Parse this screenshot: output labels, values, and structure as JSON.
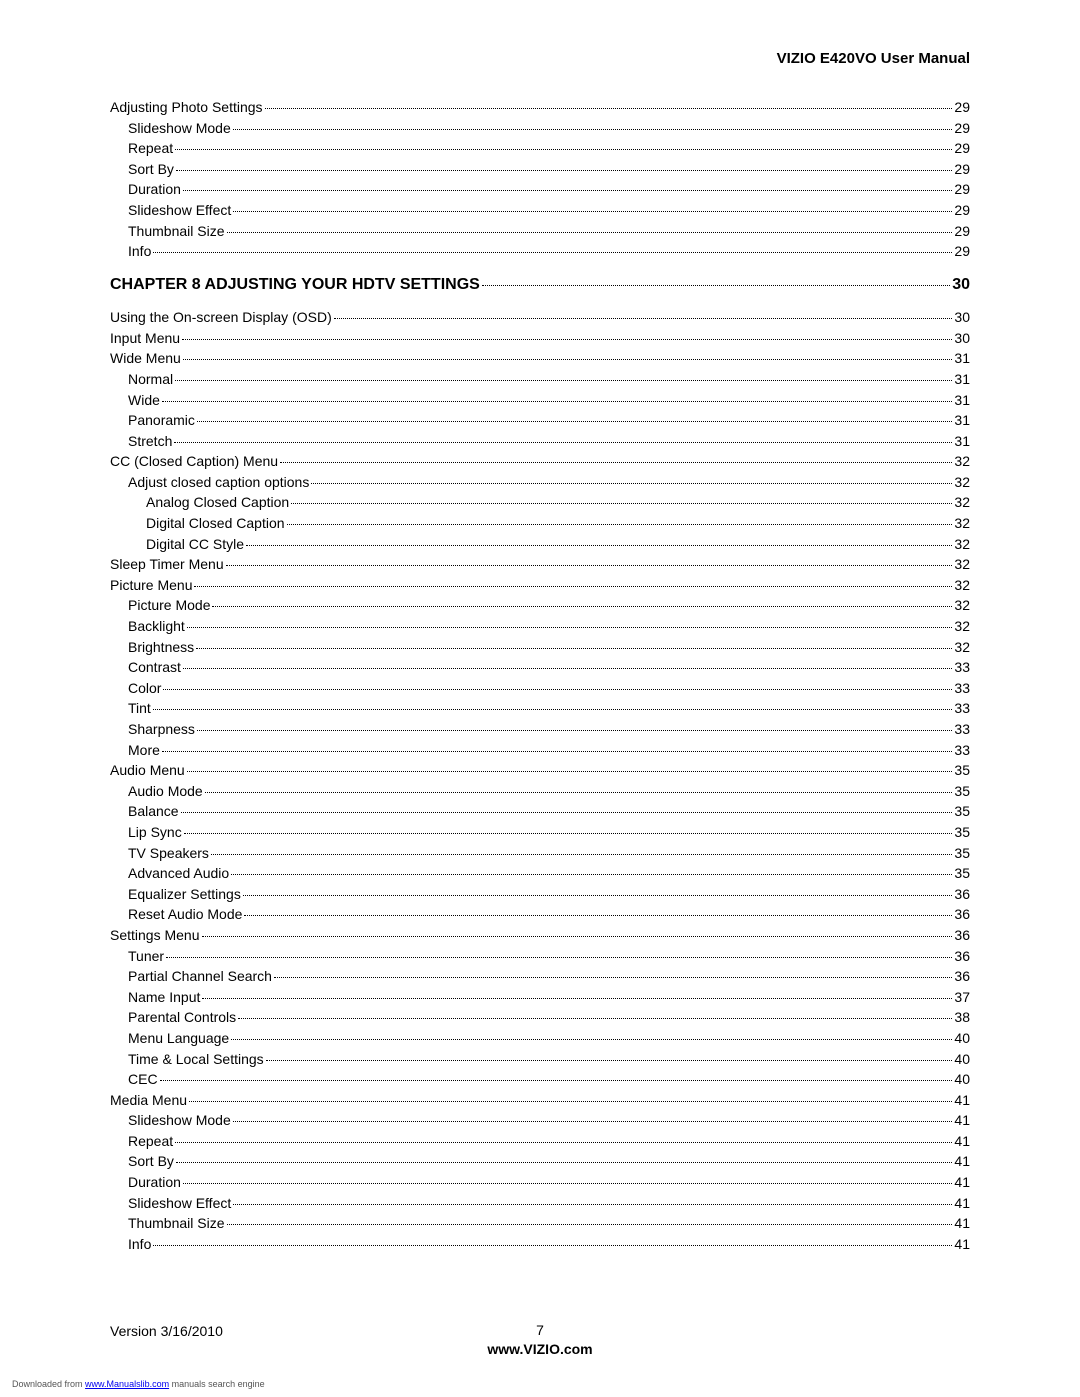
{
  "header": {
    "title": "VIZIO E420VO User Manual"
  },
  "toc": [
    {
      "indent": 0,
      "label": "Adjusting Photo Settings",
      "page": "29",
      "chapter": false
    },
    {
      "indent": 1,
      "label": "Slideshow Mode",
      "page": "29",
      "chapter": false
    },
    {
      "indent": 1,
      "label": "Repeat",
      "page": "29",
      "chapter": false
    },
    {
      "indent": 1,
      "label": "Sort By",
      "page": "29",
      "chapter": false
    },
    {
      "indent": 1,
      "label": "Duration",
      "page": "29",
      "chapter": false
    },
    {
      "indent": 1,
      "label": "Slideshow Effect",
      "page": "29",
      "chapter": false
    },
    {
      "indent": 1,
      "label": "Thumbnail Size",
      "page": "29",
      "chapter": false
    },
    {
      "indent": 1,
      "label": "Info",
      "page": "29",
      "chapter": false
    },
    {
      "indent": 0,
      "label": "CHAPTER 8 ADJUSTING YOUR HDTV SETTINGS",
      "page": "30",
      "chapter": true
    },
    {
      "indent": 0,
      "label": "Using the On-screen Display (OSD)",
      "page": "30",
      "chapter": false
    },
    {
      "indent": 0,
      "label": "Input Menu",
      "page": "30",
      "chapter": false
    },
    {
      "indent": 0,
      "label": "Wide Menu",
      "page": "31",
      "chapter": false
    },
    {
      "indent": 1,
      "label": "Normal",
      "page": "31",
      "chapter": false
    },
    {
      "indent": 1,
      "label": "Wide",
      "page": "31",
      "chapter": false
    },
    {
      "indent": 1,
      "label": "Panoramic",
      "page": "31",
      "chapter": false
    },
    {
      "indent": 1,
      "label": "Stretch",
      "page": "31",
      "chapter": false
    },
    {
      "indent": 0,
      "label": "CC (Closed Caption) Menu",
      "page": "32",
      "chapter": false
    },
    {
      "indent": 1,
      "label": "Adjust closed caption options",
      "page": "32",
      "chapter": false
    },
    {
      "indent": 2,
      "label": "Analog Closed Caption",
      "page": "32",
      "chapter": false
    },
    {
      "indent": 2,
      "label": "Digital Closed Caption",
      "page": "32",
      "chapter": false
    },
    {
      "indent": 2,
      "label": "Digital CC Style",
      "page": "32",
      "chapter": false
    },
    {
      "indent": 0,
      "label": "Sleep Timer Menu",
      "page": "32",
      "chapter": false
    },
    {
      "indent": 0,
      "label": "Picture Menu",
      "page": "32",
      "chapter": false
    },
    {
      "indent": 1,
      "label": "Picture Mode",
      "page": "32",
      "chapter": false
    },
    {
      "indent": 1,
      "label": "Backlight",
      "page": "32",
      "chapter": false
    },
    {
      "indent": 1,
      "label": "Brightness",
      "page": "32",
      "chapter": false
    },
    {
      "indent": 1,
      "label": "Contrast",
      "page": "33",
      "chapter": false
    },
    {
      "indent": 1,
      "label": "Color",
      "page": "33",
      "chapter": false
    },
    {
      "indent": 1,
      "label": "Tint",
      "page": "33",
      "chapter": false
    },
    {
      "indent": 1,
      "label": "Sharpness",
      "page": "33",
      "chapter": false
    },
    {
      "indent": 1,
      "label": "More",
      "page": "33",
      "chapter": false
    },
    {
      "indent": 0,
      "label": "Audio Menu",
      "page": "35",
      "chapter": false
    },
    {
      "indent": 1,
      "label": "Audio Mode",
      "page": "35",
      "chapter": false
    },
    {
      "indent": 1,
      "label": "Balance",
      "page": "35",
      "chapter": false
    },
    {
      "indent": 1,
      "label": "Lip Sync",
      "page": "35",
      "chapter": false
    },
    {
      "indent": 1,
      "label": "TV Speakers",
      "page": "35",
      "chapter": false
    },
    {
      "indent": 1,
      "label": "Advanced Audio",
      "page": "35",
      "chapter": false
    },
    {
      "indent": 1,
      "label": "Equalizer Settings",
      "page": "36",
      "chapter": false
    },
    {
      "indent": 1,
      "label": "Reset Audio Mode",
      "page": "36",
      "chapter": false
    },
    {
      "indent": 0,
      "label": "Settings Menu",
      "page": "36",
      "chapter": false
    },
    {
      "indent": 1,
      "label": "Tuner",
      "page": "36",
      "chapter": false
    },
    {
      "indent": 1,
      "label": "Partial Channel Search",
      "page": "36",
      "chapter": false
    },
    {
      "indent": 1,
      "label": "Name Input",
      "page": "37",
      "chapter": false
    },
    {
      "indent": 1,
      "label": "Parental Controls",
      "page": "38",
      "chapter": false
    },
    {
      "indent": 1,
      "label": "Menu Language",
      "page": "40",
      "chapter": false
    },
    {
      "indent": 1,
      "label": "Time & Local Settings",
      "page": "40",
      "chapter": false
    },
    {
      "indent": 1,
      "label": "CEC",
      "page": "40",
      "chapter": false
    },
    {
      "indent": 0,
      "label": "Media Menu",
      "page": "41",
      "chapter": false
    },
    {
      "indent": 1,
      "label": "Slideshow Mode",
      "page": "41",
      "chapter": false
    },
    {
      "indent": 1,
      "label": "Repeat",
      "page": "41",
      "chapter": false
    },
    {
      "indent": 1,
      "label": "Sort By",
      "page": "41",
      "chapter": false
    },
    {
      "indent": 1,
      "label": "Duration",
      "page": "41",
      "chapter": false
    },
    {
      "indent": 1,
      "label": "Slideshow Effect",
      "page": "41",
      "chapter": false
    },
    {
      "indent": 1,
      "label": "Thumbnail Size",
      "page": "41",
      "chapter": false
    },
    {
      "indent": 1,
      "label": "Info",
      "page": "41",
      "chapter": false
    }
  ],
  "footer": {
    "version": "Version 3/16/2010",
    "page": "7",
    "url": "www.VIZIO.com"
  },
  "download": {
    "prefix": "Downloaded from ",
    "link": "www.Manualslib.com",
    "suffix": " manuals search engine"
  },
  "colors": {
    "text": "#000000",
    "background": "#ffffff",
    "link": "#0000ee"
  }
}
